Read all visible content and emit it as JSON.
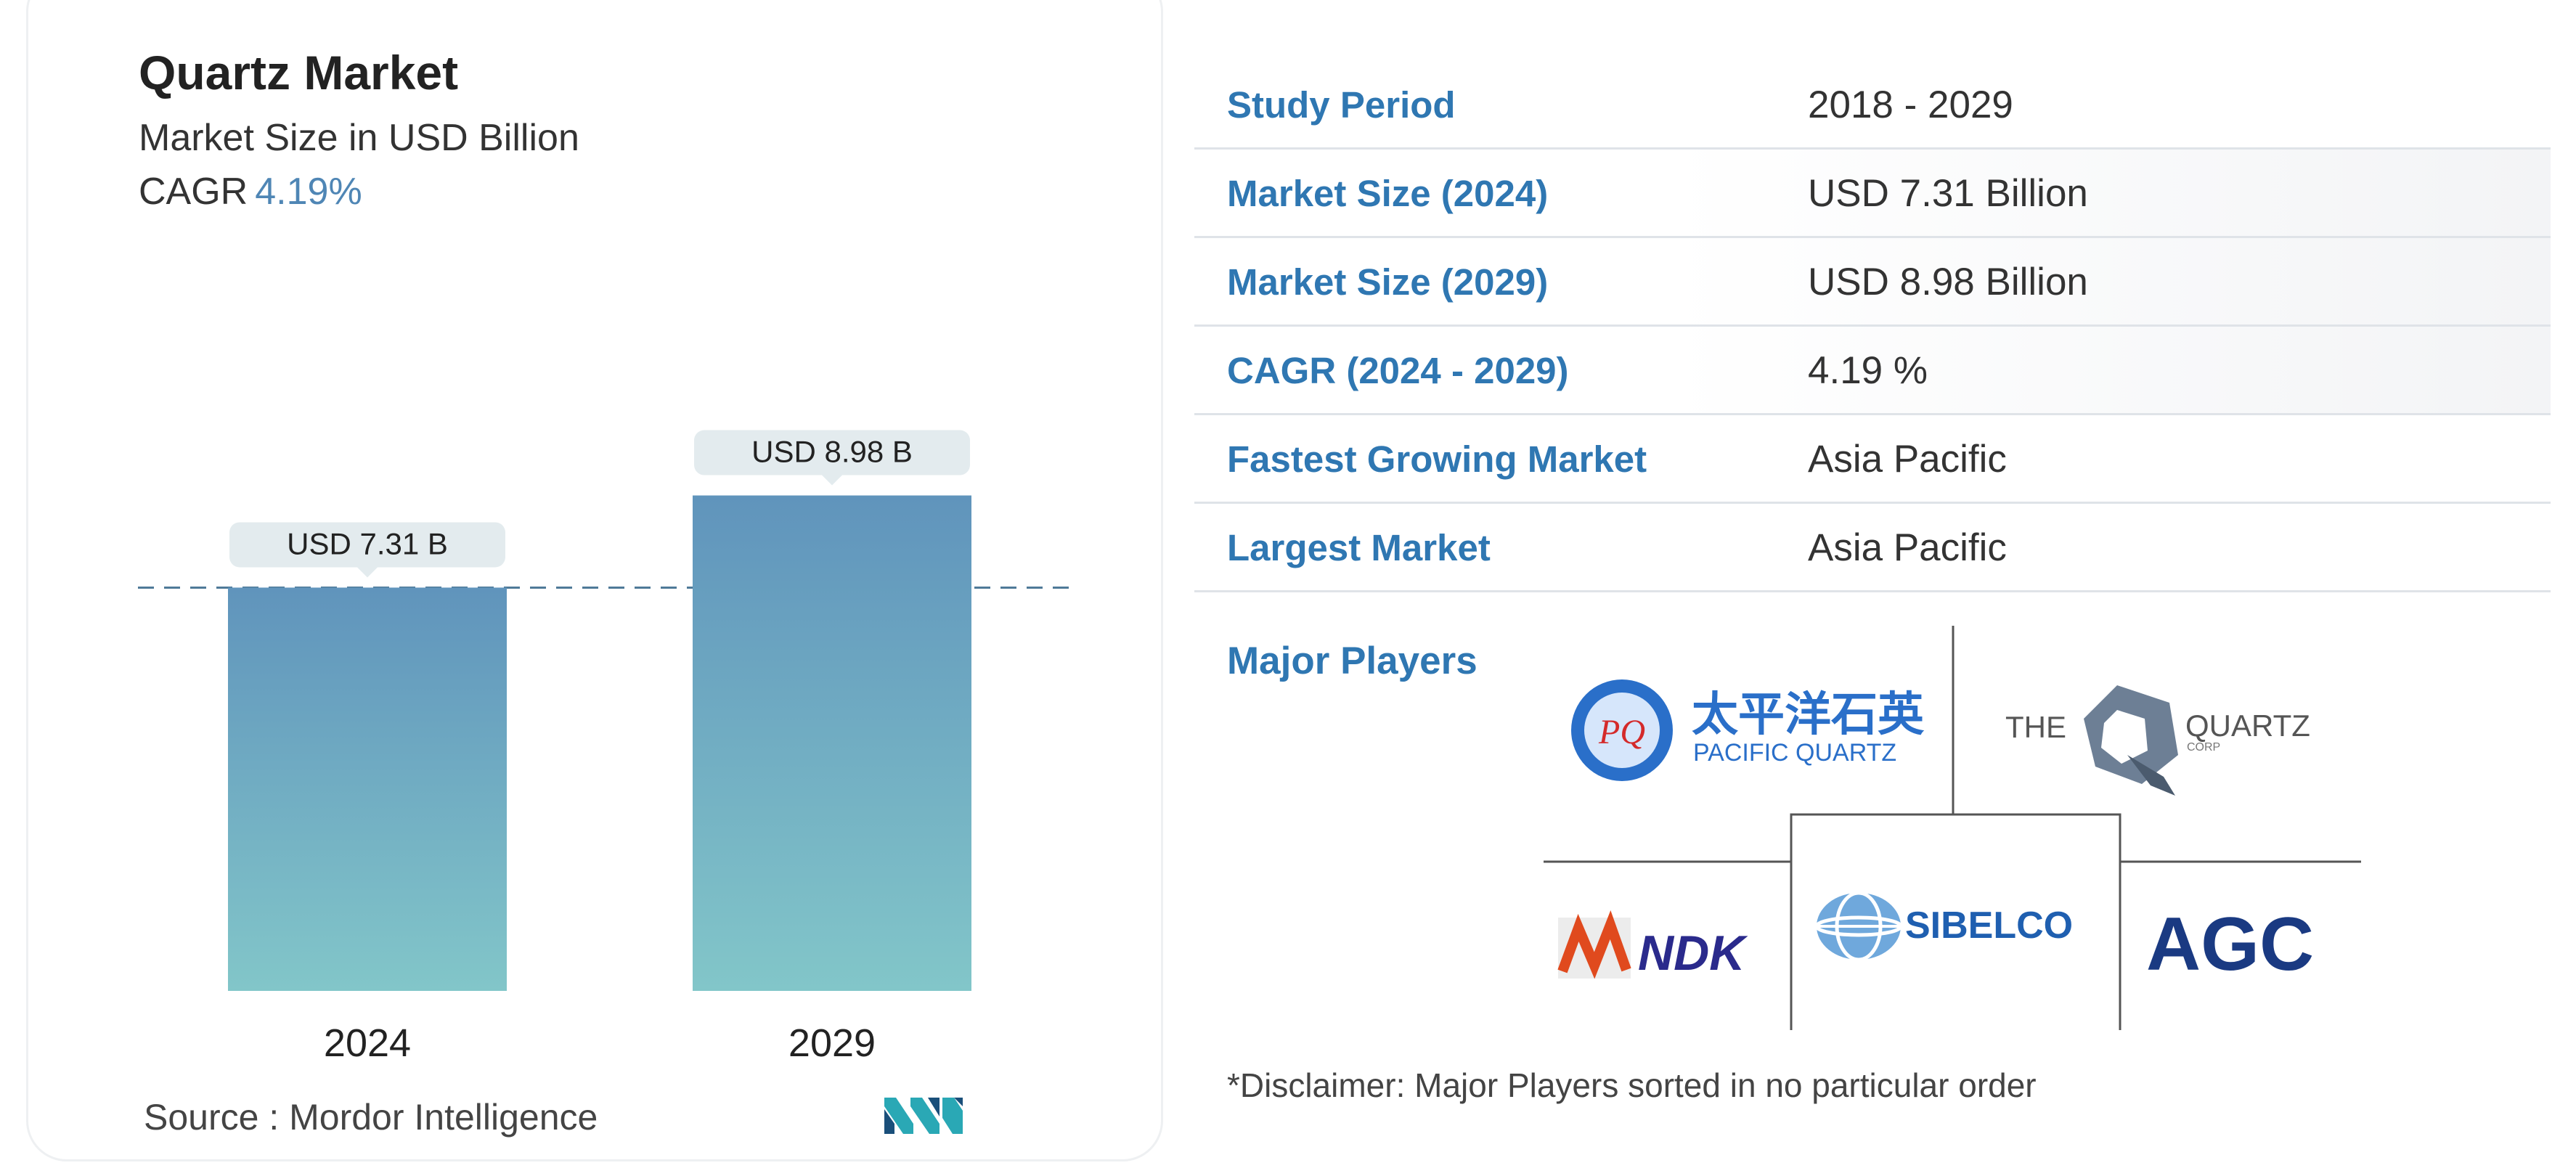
{
  "chart_data": {
    "type": "bar",
    "title": "Quartz Market",
    "subtitle": "Market Size in USD Billion",
    "cagr_label": "CAGR",
    "cagr_value": "4.19%",
    "categories": [
      "2024",
      "2029"
    ],
    "values": [
      7.31,
      8.98
    ],
    "data_labels": [
      "USD 7.31 B",
      "USD 8.98 B"
    ],
    "reference_line": 7.31,
    "colors": {
      "bar_top": "#6094bc",
      "bar_bottom": "#82c6c9",
      "label_bg": "#e3ebee",
      "ref_line": "#4f7a98"
    },
    "grid": false
  },
  "source": {
    "label": "Source :",
    "name": "Mordor Intelligence"
  },
  "table": [
    {
      "label": "Study Period",
      "value": "2018 - 2029"
    },
    {
      "label": "Market Size (2024)",
      "value": "USD 7.31 Billion"
    },
    {
      "label": "Market Size (2029)",
      "value": "USD 8.98 Billion"
    },
    {
      "label": "CAGR (2024 - 2029)",
      "value": "4.19 %"
    },
    {
      "label": "Fastest Growing Market",
      "value": "Asia Pacific"
    },
    {
      "label": "Largest Market",
      "value": "Asia Pacific"
    }
  ],
  "major_players": {
    "label": "Major Players",
    "logos": {
      "pacific_quartz": {
        "mark": "PQ",
        "cn": "太平洋石英",
        "en": "PACIFIC QUARTZ"
      },
      "quartz_corp": {
        "left": "THE",
        "right": "QUARTZ",
        "small": "CORP"
      },
      "ndk": {
        "text": "NDK"
      },
      "sibelco": {
        "text": "SIBELCO"
      },
      "agc": {
        "text": "AGC"
      }
    },
    "disclaimer": "*Disclaimer: Major Players sorted in no particular order"
  },
  "accent_color": "#2f77b2"
}
